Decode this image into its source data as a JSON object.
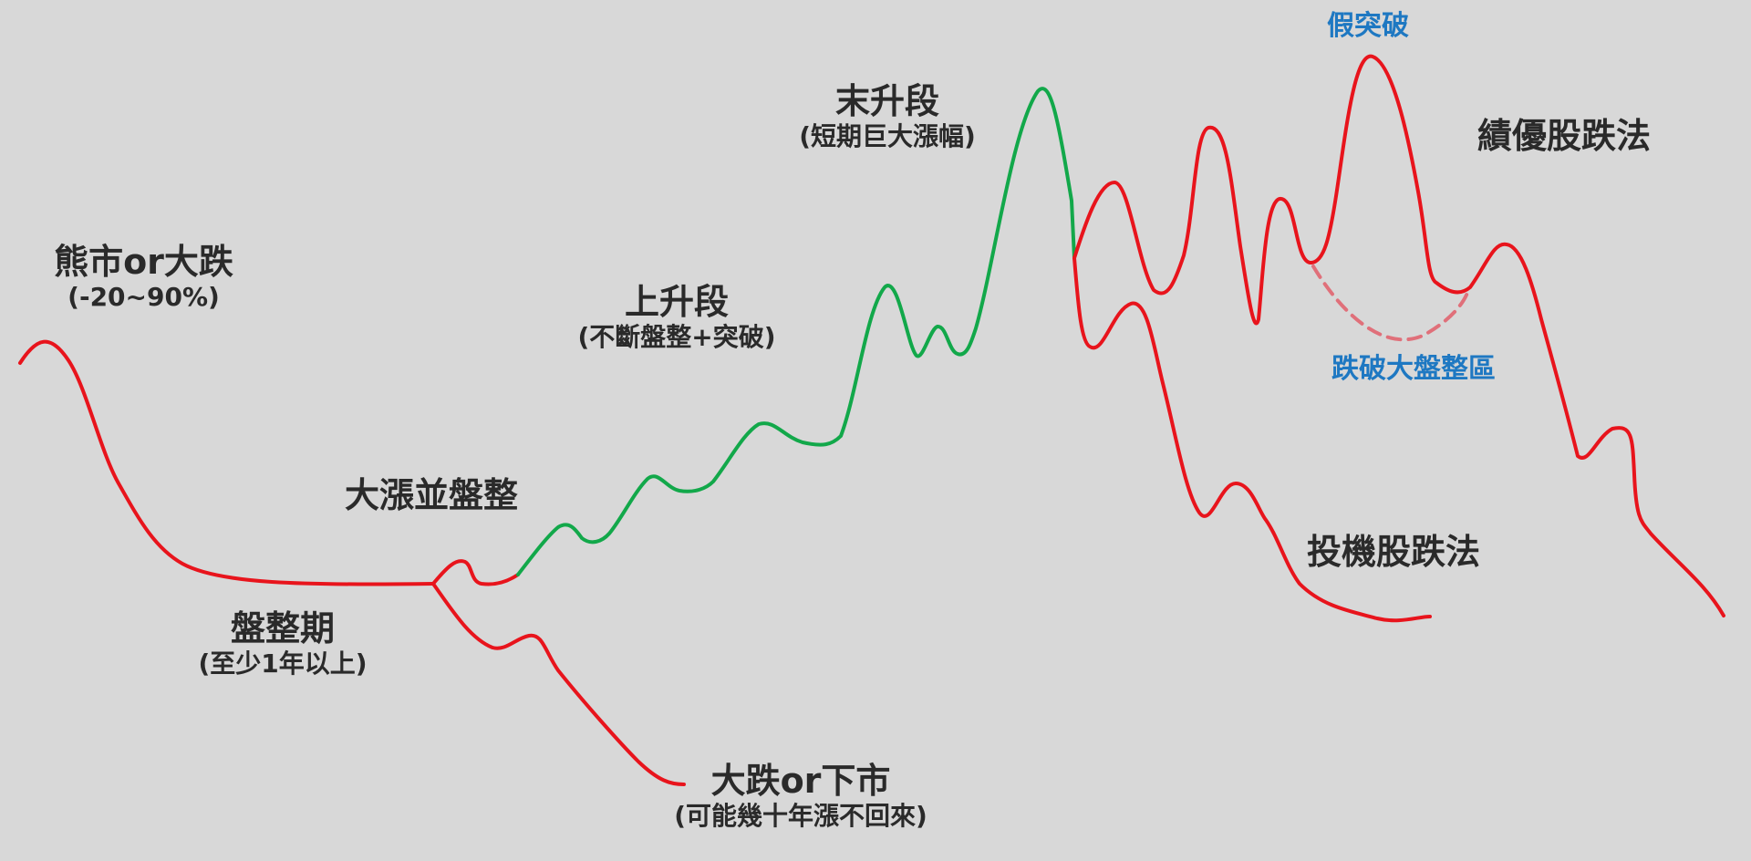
{
  "labels": {
    "bear_market": {
      "main": "熊市or大跌",
      "sub": "(-20~90%)"
    },
    "consolidation": {
      "main": "盤整期",
      "sub": "(至少1年以上)"
    },
    "big_rise": {
      "main": "大漲並盤整"
    },
    "crash": {
      "main": "大跌or下市",
      "sub": "(可能幾十年漲不回來)"
    },
    "rising_stage": {
      "main": "上升段",
      "sub": "(不斷盤整+突破)"
    },
    "final_stage": {
      "main": "末升段",
      "sub": "(短期巨大漲幅)"
    },
    "fake_breakout": {
      "main": "假突破"
    },
    "blue_chip_drop": {
      "main": "績優股跌法"
    },
    "break_range": {
      "main": "跌破大盤整區"
    },
    "spec_drop": {
      "main": "投機股跌法"
    }
  },
  "colors": {
    "background": "#d8d8d8",
    "decline_line": "#e8141c",
    "rise_line": "#12a84a",
    "dashed_line": "#e0707a",
    "annotation_blue": "#1e78c2",
    "text": "#2a2a2a"
  }
}
